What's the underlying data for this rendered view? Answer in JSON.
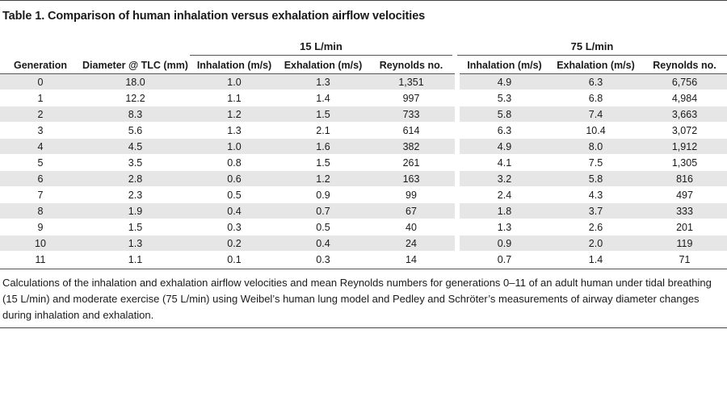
{
  "title": "Table 1. Comparison of human inhalation versus exhalation airflow velocities",
  "groups": {
    "g15": "15 L/min",
    "g75": "75 L/min"
  },
  "columns": {
    "generation": "Generation",
    "diameter": "Diameter @ TLC (mm)",
    "inh15": "Inhalation (m/s)",
    "exh15": "Exhalation (m/s)",
    "re15": "Reynolds no.",
    "inh75": "Inhalation (m/s)",
    "exh75": "Exhalation (m/s)",
    "re75": "Reynolds no."
  },
  "rows": [
    [
      "0",
      "18.0",
      "1.0",
      "1.3",
      "1,351",
      "4.9",
      "6.3",
      "6,756"
    ],
    [
      "1",
      "12.2",
      "1.1",
      "1.4",
      "997",
      "5.3",
      "6.8",
      "4,984"
    ],
    [
      "2",
      "8.3",
      "1.2",
      "1.5",
      "733",
      "5.8",
      "7.4",
      "3,663"
    ],
    [
      "3",
      "5.6",
      "1.3",
      "2.1",
      "614",
      "6.3",
      "10.4",
      "3,072"
    ],
    [
      "4",
      "4.5",
      "1.0",
      "1.6",
      "382",
      "4.9",
      "8.0",
      "1,912"
    ],
    [
      "5",
      "3.5",
      "0.8",
      "1.5",
      "261",
      "4.1",
      "7.5",
      "1,305"
    ],
    [
      "6",
      "2.8",
      "0.6",
      "1.2",
      "163",
      "3.2",
      "5.8",
      "816"
    ],
    [
      "7",
      "2.3",
      "0.5",
      "0.9",
      "99",
      "2.4",
      "4.3",
      "497"
    ],
    [
      "8",
      "1.9",
      "0.4",
      "0.7",
      "67",
      "1.8",
      "3.7",
      "333"
    ],
    [
      "9",
      "1.5",
      "0.3",
      "0.5",
      "40",
      "1.3",
      "2.6",
      "201"
    ],
    [
      "10",
      "1.3",
      "0.2",
      "0.4",
      "24",
      "0.9",
      "2.0",
      "119"
    ],
    [
      "11",
      "1.1",
      "0.1",
      "0.3",
      "14",
      "0.7",
      "1.4",
      "71"
    ]
  ],
  "note": "Calculations of the inhalation and exhalation airflow velocities and mean Reynolds numbers for generations 0–11 of an adult human under tidal breathing (15 L/min) and moderate exercise (75 L/min) using Weibel’s human lung model and Pedley and Schröter’s measurements of airway diameter changes during inhalation and exhalation."
}
